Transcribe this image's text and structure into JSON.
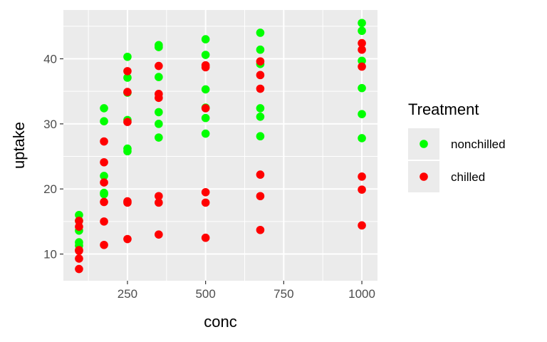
{
  "chart_data": {
    "type": "scatter",
    "xlabel": "conc",
    "ylabel": "uptake",
    "xlim": [
      45,
      1050
    ],
    "ylim": [
      5.9,
      47.5
    ],
    "x_ticks": [
      250,
      500,
      750,
      1000
    ],
    "x_tick_labels": [
      "250",
      "500",
      "750",
      "1000"
    ],
    "y_ticks": [
      10,
      20,
      30,
      40
    ],
    "y_tick_labels": [
      "10",
      "20",
      "30",
      "40"
    ],
    "grid": true,
    "legend": {
      "title": "Treatment",
      "position": "right"
    },
    "series": [
      {
        "name": "nonchilled",
        "color": "#00ff00",
        "points": [
          [
            95,
            16.0
          ],
          [
            95,
            15.1
          ],
          [
            95,
            13.6
          ],
          [
            95,
            11.8
          ],
          [
            95,
            11.3
          ],
          [
            175,
            32.4
          ],
          [
            175,
            30.4
          ],
          [
            175,
            22.0
          ],
          [
            175,
            19.4
          ],
          [
            175,
            19.2
          ],
          [
            250,
            40.3
          ],
          [
            250,
            37.1
          ],
          [
            250,
            34.8
          ],
          [
            250,
            30.6
          ],
          [
            250,
            26.2
          ],
          [
            250,
            25.8
          ],
          [
            350,
            42.1
          ],
          [
            350,
            41.8
          ],
          [
            350,
            37.2
          ],
          [
            350,
            31.8
          ],
          [
            350,
            30.0
          ],
          [
            350,
            27.9
          ],
          [
            500,
            43.0
          ],
          [
            500,
            40.6
          ],
          [
            500,
            35.3
          ],
          [
            500,
            32.5
          ],
          [
            500,
            30.9
          ],
          [
            500,
            28.5
          ],
          [
            675,
            44.0
          ],
          [
            675,
            41.4
          ],
          [
            675,
            39.2
          ],
          [
            675,
            32.4
          ],
          [
            675,
            31.1
          ],
          [
            675,
            28.1
          ],
          [
            1000,
            45.5
          ],
          [
            1000,
            44.3
          ],
          [
            1000,
            39.7
          ],
          [
            1000,
            35.5
          ],
          [
            1000,
            31.5
          ],
          [
            1000,
            27.8
          ]
        ]
      },
      {
        "name": "chilled",
        "color": "#ff0000",
        "points": [
          [
            95,
            15.1
          ],
          [
            95,
            14.2
          ],
          [
            95,
            10.6
          ],
          [
            95,
            10.5
          ],
          [
            95,
            9.3
          ],
          [
            95,
            7.7
          ],
          [
            175,
            27.3
          ],
          [
            175,
            24.1
          ],
          [
            175,
            21.0
          ],
          [
            175,
            18.0
          ],
          [
            175,
            15.0
          ],
          [
            175,
            11.4
          ],
          [
            250,
            38.1
          ],
          [
            250,
            34.9
          ],
          [
            250,
            30.3
          ],
          [
            250,
            18.1
          ],
          [
            250,
            17.9
          ],
          [
            250,
            12.3
          ],
          [
            350,
            38.9
          ],
          [
            350,
            34.6
          ],
          [
            350,
            34.0
          ],
          [
            350,
            18.9
          ],
          [
            350,
            17.9
          ],
          [
            350,
            13.0
          ],
          [
            500,
            39.0
          ],
          [
            500,
            38.7
          ],
          [
            500,
            32.4
          ],
          [
            500,
            19.5
          ],
          [
            500,
            17.9
          ],
          [
            500,
            12.5
          ],
          [
            675,
            39.6
          ],
          [
            675,
            37.5
          ],
          [
            675,
            35.4
          ],
          [
            675,
            22.2
          ],
          [
            675,
            18.9
          ],
          [
            675,
            13.7
          ],
          [
            1000,
            42.4
          ],
          [
            1000,
            41.4
          ],
          [
            1000,
            38.8
          ],
          [
            1000,
            21.9
          ],
          [
            1000,
            19.9
          ],
          [
            1000,
            14.4
          ]
        ]
      }
    ]
  }
}
